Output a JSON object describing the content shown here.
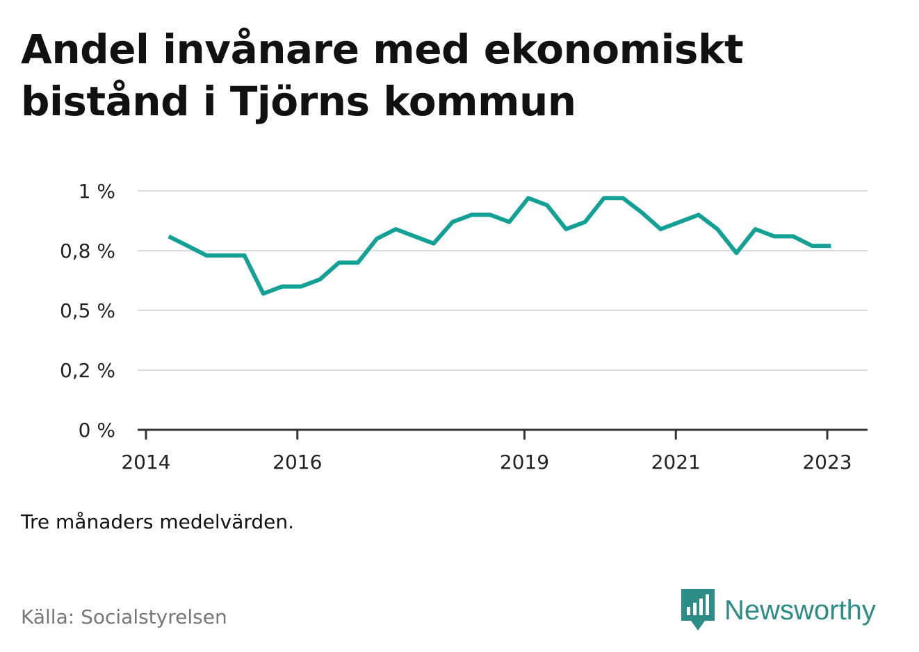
{
  "title": "Andel invånare med ekonomiskt bistånd i Tjörns kommun",
  "note": "Tre månaders medelvärden.",
  "source": "Källa: Socialstyrelsen",
  "brand": {
    "name": "Newsworthy",
    "icon": "newsworthy-logo-icon",
    "color": "#2c8c86"
  },
  "colors": {
    "line": "#13a095",
    "grid": "#dddddd",
    "axis": "#333333"
  },
  "chart_data": {
    "type": "line",
    "title": "Andel invånare med ekonomiskt bistånd i Tjörns kommun",
    "xlabel": "",
    "ylabel": "",
    "ylim": [
      0,
      1
    ],
    "yticks": [
      {
        "value": 0,
        "label": "0 %"
      },
      {
        "value": 0.25,
        "label": "0,2 %"
      },
      {
        "value": 0.5,
        "label": "0,5 %"
      },
      {
        "value": 0.75,
        "label": "0,8 %"
      },
      {
        "value": 1,
        "label": "1 %"
      }
    ],
    "xlim": [
      2014,
      2023.54
    ],
    "xticks": [
      {
        "value": 2014,
        "label": "2014"
      },
      {
        "value": 2016,
        "label": "2016"
      },
      {
        "value": 2019,
        "label": "2019"
      },
      {
        "value": 2021,
        "label": "2021"
      },
      {
        "value": 2023,
        "label": "2023"
      }
    ],
    "grid": true,
    "series": [
      {
        "color": "#13a095",
        "x": [
          2014.3,
          2014.55,
          2014.8,
          2015.05,
          2015.3,
          2015.55,
          2015.8,
          2016.05,
          2016.3,
          2016.55,
          2016.8,
          2017.05,
          2017.3,
          2017.55,
          2017.8,
          2018.05,
          2018.3,
          2018.55,
          2018.8,
          2019.05,
          2019.3,
          2019.55,
          2019.8,
          2020.05,
          2020.3,
          2020.55,
          2020.8,
          2021.05,
          2021.3,
          2021.55,
          2021.8,
          2022.05,
          2022.3,
          2022.55,
          2022.8,
          2023.05
        ],
        "y": [
          0.81,
          0.77,
          0.73,
          0.73,
          0.73,
          0.57,
          0.6,
          0.6,
          0.63,
          0.7,
          0.7,
          0.8,
          0.84,
          0.81,
          0.78,
          0.87,
          0.9,
          0.9,
          0.87,
          0.97,
          0.94,
          0.84,
          0.87,
          0.97,
          0.97,
          0.91,
          0.84,
          0.87,
          0.9,
          0.84,
          0.74,
          0.84,
          0.81,
          0.81,
          0.77,
          0.77
        ]
      }
    ]
  }
}
